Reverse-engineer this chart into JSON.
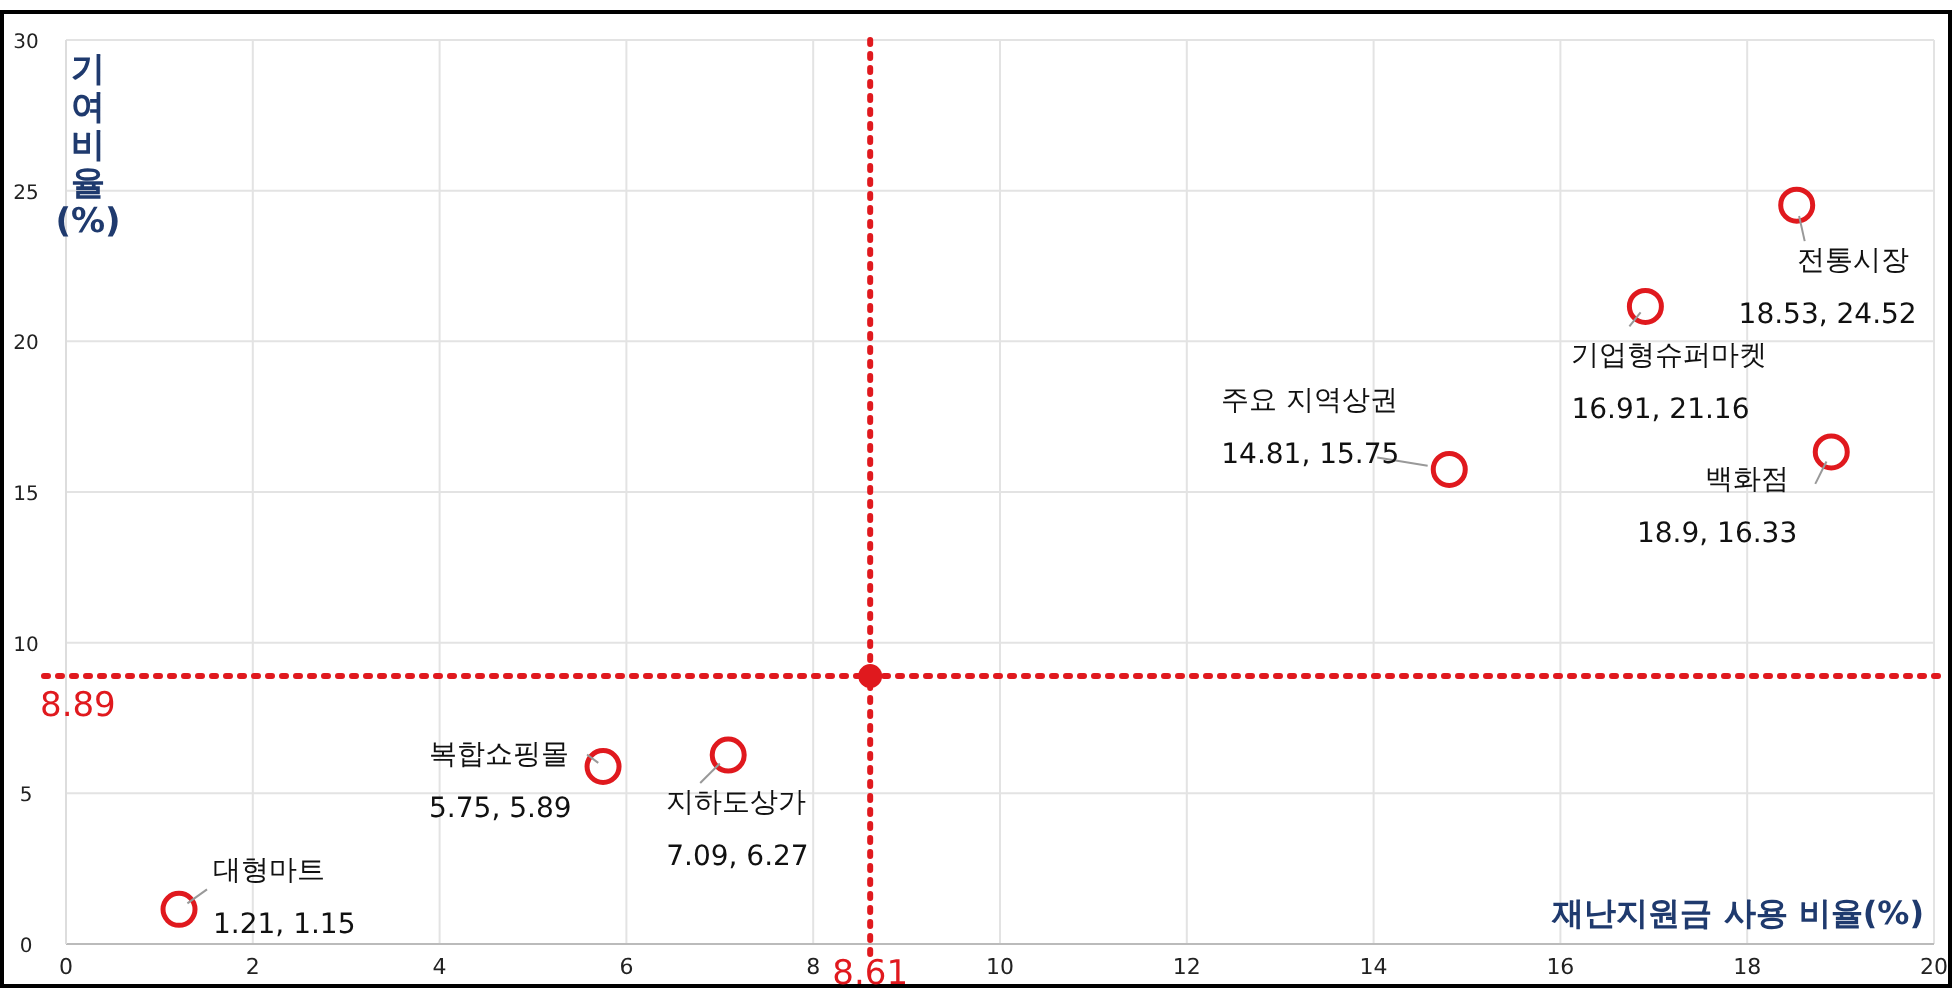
{
  "chart_data": {
    "type": "scatter",
    "xlabel": "재난지원금 사용 비율(%)",
    "ylabel": "기여 비율(%)",
    "xlim": [
      0,
      20
    ],
    "xticks": [
      0,
      2,
      4,
      6,
      8,
      10,
      12,
      14,
      16,
      18,
      20
    ],
    "ylim": [
      0,
      30
    ],
    "yticks": [
      0,
      5,
      10,
      15,
      20,
      25,
      30
    ],
    "grid": true,
    "marker": "circle",
    "series": [
      {
        "color": "#e0191e",
        "x": [
          1.21,
          5.75,
          7.09,
          14.81,
          16.91,
          18.9,
          18.53
        ],
        "values": [
          1.15,
          5.89,
          6.27,
          15.75,
          21.16,
          16.33,
          24.52
        ],
        "value_labels": [
          "1.21, 1.15",
          "5.75, 5.89",
          "7.09, 6.27",
          "14.81, 15.75",
          "16.91, 21.16",
          "18.9, 16.33",
          "18.53, 24.52"
        ]
      },
      {
        "color": "#e0191e",
        "x": [
          8.61
        ],
        "values": [
          8.89
        ]
      }
    ],
    "annotations": [
      {
        "text": "대형마트",
        "x": 1.21,
        "y": 1.15
      },
      {
        "text": "복합쇼핑몰",
        "x": 5.75,
        "y": 5.89
      },
      {
        "text": "지하도상가",
        "x": 7.09,
        "y": 6.27
      },
      {
        "text": "주요 지역상권",
        "x": 14.81,
        "y": 15.75
      },
      {
        "text": "기업형슈퍼마켓",
        "x": 16.91,
        "y": 21.16
      },
      {
        "text": "백화점",
        "x": 18.9,
        "y": 16.33
      },
      {
        "text": "전통시장",
        "x": 18.53,
        "y": 24.52
      }
    ],
    "ref_lines": [
      {
        "axis": "x",
        "value": 8.61,
        "label": "8.61",
        "color": "#e0191e",
        "line_style": "dotted"
      },
      {
        "axis": "y",
        "value": 8.89,
        "label": "8.89",
        "color": "#e0191e",
        "line_style": "dotted"
      }
    ]
  }
}
